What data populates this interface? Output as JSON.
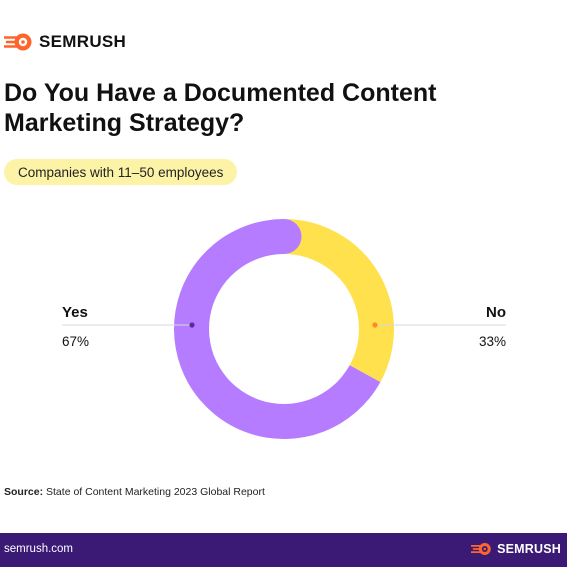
{
  "brand": {
    "name": "SEMRUSH",
    "icon": "semrush-flame-icon",
    "accent": "#ff642d"
  },
  "title": "Do You Have a Documented Content Marketing Strategy?",
  "segment_label": "Companies with 11–50 employees",
  "chart_data": {
    "type": "pie",
    "variant": "donut",
    "title": "Do You Have a Documented Content Marketing Strategy?",
    "subtitle": "Companies with 11–50 employees",
    "slices": [
      {
        "label": "Yes",
        "value": 67,
        "value_label": "67%",
        "color": "#b57cff",
        "marker_color": "#5b2a9e"
      },
      {
        "label": "No",
        "value": 33,
        "value_label": "33%",
        "color": "#ffe14d",
        "marker_color": "#ff8a2b"
      }
    ]
  },
  "source": {
    "label": "Source:",
    "text": "State of Content Marketing 2023 Global Report"
  },
  "footer": {
    "url": "semrush.com",
    "brand": "SEMRUSH",
    "background": "#3b1a76"
  }
}
